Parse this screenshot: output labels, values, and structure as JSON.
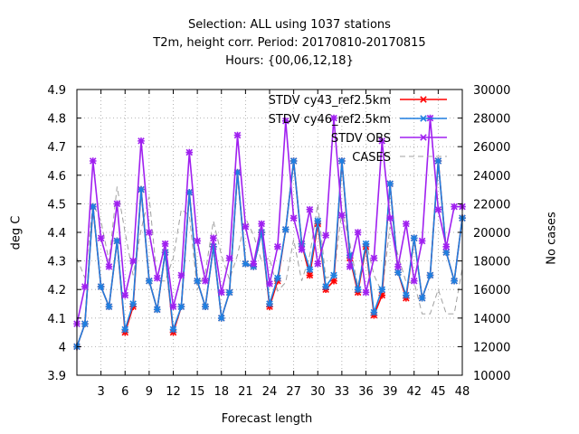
{
  "title_lines": [
    "Selection: ALL using  1037 stations",
    "T2m, height corr.   Period: 20170810-20170815",
    "Hours: {00,06,12,18}"
  ],
  "chart_data": {
    "type": "line",
    "xlabel": "Forecast length",
    "ylabel": "deg C",
    "y2label": "No cases",
    "xlim": [
      0,
      48
    ],
    "ylim": [
      3.9,
      4.9
    ],
    "y2lim": [
      10000,
      30000
    ],
    "x_ticks": [
      3,
      6,
      9,
      12,
      15,
      18,
      21,
      24,
      27,
      30,
      33,
      36,
      39,
      42,
      45,
      48
    ],
    "y_ticks": [
      "3.9",
      "4",
      "4.1",
      "4.2",
      "4.3",
      "4.4",
      "4.5",
      "4.6",
      "4.7",
      "4.8",
      "4.9"
    ],
    "y2_ticks": [
      "10000",
      "12000",
      "14000",
      "16000",
      "18000",
      "20000",
      "22000",
      "24000",
      "26000",
      "28000",
      "30000"
    ],
    "grid": true,
    "legend_position": "top-right",
    "x": [
      0,
      1,
      2,
      3,
      4,
      5,
      6,
      7,
      8,
      9,
      10,
      11,
      12,
      13,
      14,
      15,
      16,
      17,
      18,
      19,
      20,
      21,
      22,
      23,
      24,
      25,
      26,
      27,
      28,
      29,
      30,
      31,
      32,
      33,
      34,
      35,
      36,
      37,
      38,
      39,
      40,
      41,
      42,
      43,
      44,
      45,
      46,
      47,
      48
    ],
    "series": [
      {
        "name": "STDV cy43_ref2.5km",
        "color": "#ff0000",
        "marker": "x",
        "axis": "left",
        "values": [
          4.0,
          4.08,
          4.49,
          4.21,
          4.14,
          4.37,
          4.05,
          4.14,
          4.55,
          4.23,
          4.13,
          4.33,
          4.05,
          4.14,
          4.54,
          4.23,
          4.14,
          4.35,
          4.1,
          4.19,
          4.61,
          4.29,
          4.28,
          4.4,
          4.14,
          4.23,
          4.41,
          4.65,
          4.36,
          4.25,
          4.43,
          4.2,
          4.23,
          4.65,
          4.31,
          4.19,
          4.35,
          4.11,
          4.18,
          4.57,
          4.26,
          4.17,
          4.38,
          4.17,
          4.25,
          4.65,
          4.33,
          4.23,
          4.45
        ]
      },
      {
        "name": "STDV cy46_ref2.5km",
        "color": "#1f7fe0",
        "marker": "x",
        "axis": "left",
        "values": [
          4.0,
          4.08,
          4.49,
          4.21,
          4.14,
          4.37,
          4.06,
          4.15,
          4.55,
          4.23,
          4.13,
          4.33,
          4.06,
          4.14,
          4.54,
          4.23,
          4.14,
          4.35,
          4.1,
          4.19,
          4.61,
          4.29,
          4.28,
          4.4,
          4.15,
          4.24,
          4.41,
          4.65,
          4.36,
          4.27,
          4.44,
          4.21,
          4.25,
          4.65,
          4.32,
          4.2,
          4.36,
          4.12,
          4.2,
          4.57,
          4.26,
          4.18,
          4.38,
          4.17,
          4.25,
          4.65,
          4.33,
          4.23,
          4.45
        ]
      },
      {
        "name": "STDV OBS",
        "color": "#a020f0",
        "marker": "x",
        "axis": "left",
        "values": [
          4.08,
          4.21,
          4.65,
          4.38,
          4.28,
          4.5,
          4.18,
          4.3,
          4.72,
          4.4,
          4.24,
          4.36,
          4.14,
          4.25,
          4.68,
          4.37,
          4.23,
          4.38,
          4.19,
          4.31,
          4.74,
          4.42,
          4.29,
          4.43,
          4.22,
          4.35,
          4.79,
          4.45,
          4.34,
          4.48,
          4.29,
          4.39,
          4.8,
          4.46,
          4.28,
          4.4,
          4.19,
          4.31,
          4.72,
          4.45,
          4.28,
          4.43,
          4.23,
          4.37,
          4.8,
          4.48,
          4.35,
          4.49,
          4.49
        ]
      },
      {
        "name": "CASES",
        "color": "#a0a0a0",
        "marker": "none",
        "axis": "right",
        "values": [
          18200,
          16800,
          22000,
          20800,
          18000,
          23200,
          20000,
          17000,
          20200,
          22500,
          16600,
          16600,
          18200,
          21600,
          21200,
          16000,
          17200,
          20800,
          18400,
          16700,
          18400,
          21000,
          19800,
          18000,
          18200,
          15900,
          16500,
          19500,
          16600,
          18400,
          22000,
          16800,
          17000,
          21500,
          19200,
          16200,
          19400,
          17000,
          15800,
          20400,
          18400,
          16500,
          16500,
          14300,
          14300,
          16000,
          14300,
          14300,
          17500
        ]
      }
    ]
  }
}
